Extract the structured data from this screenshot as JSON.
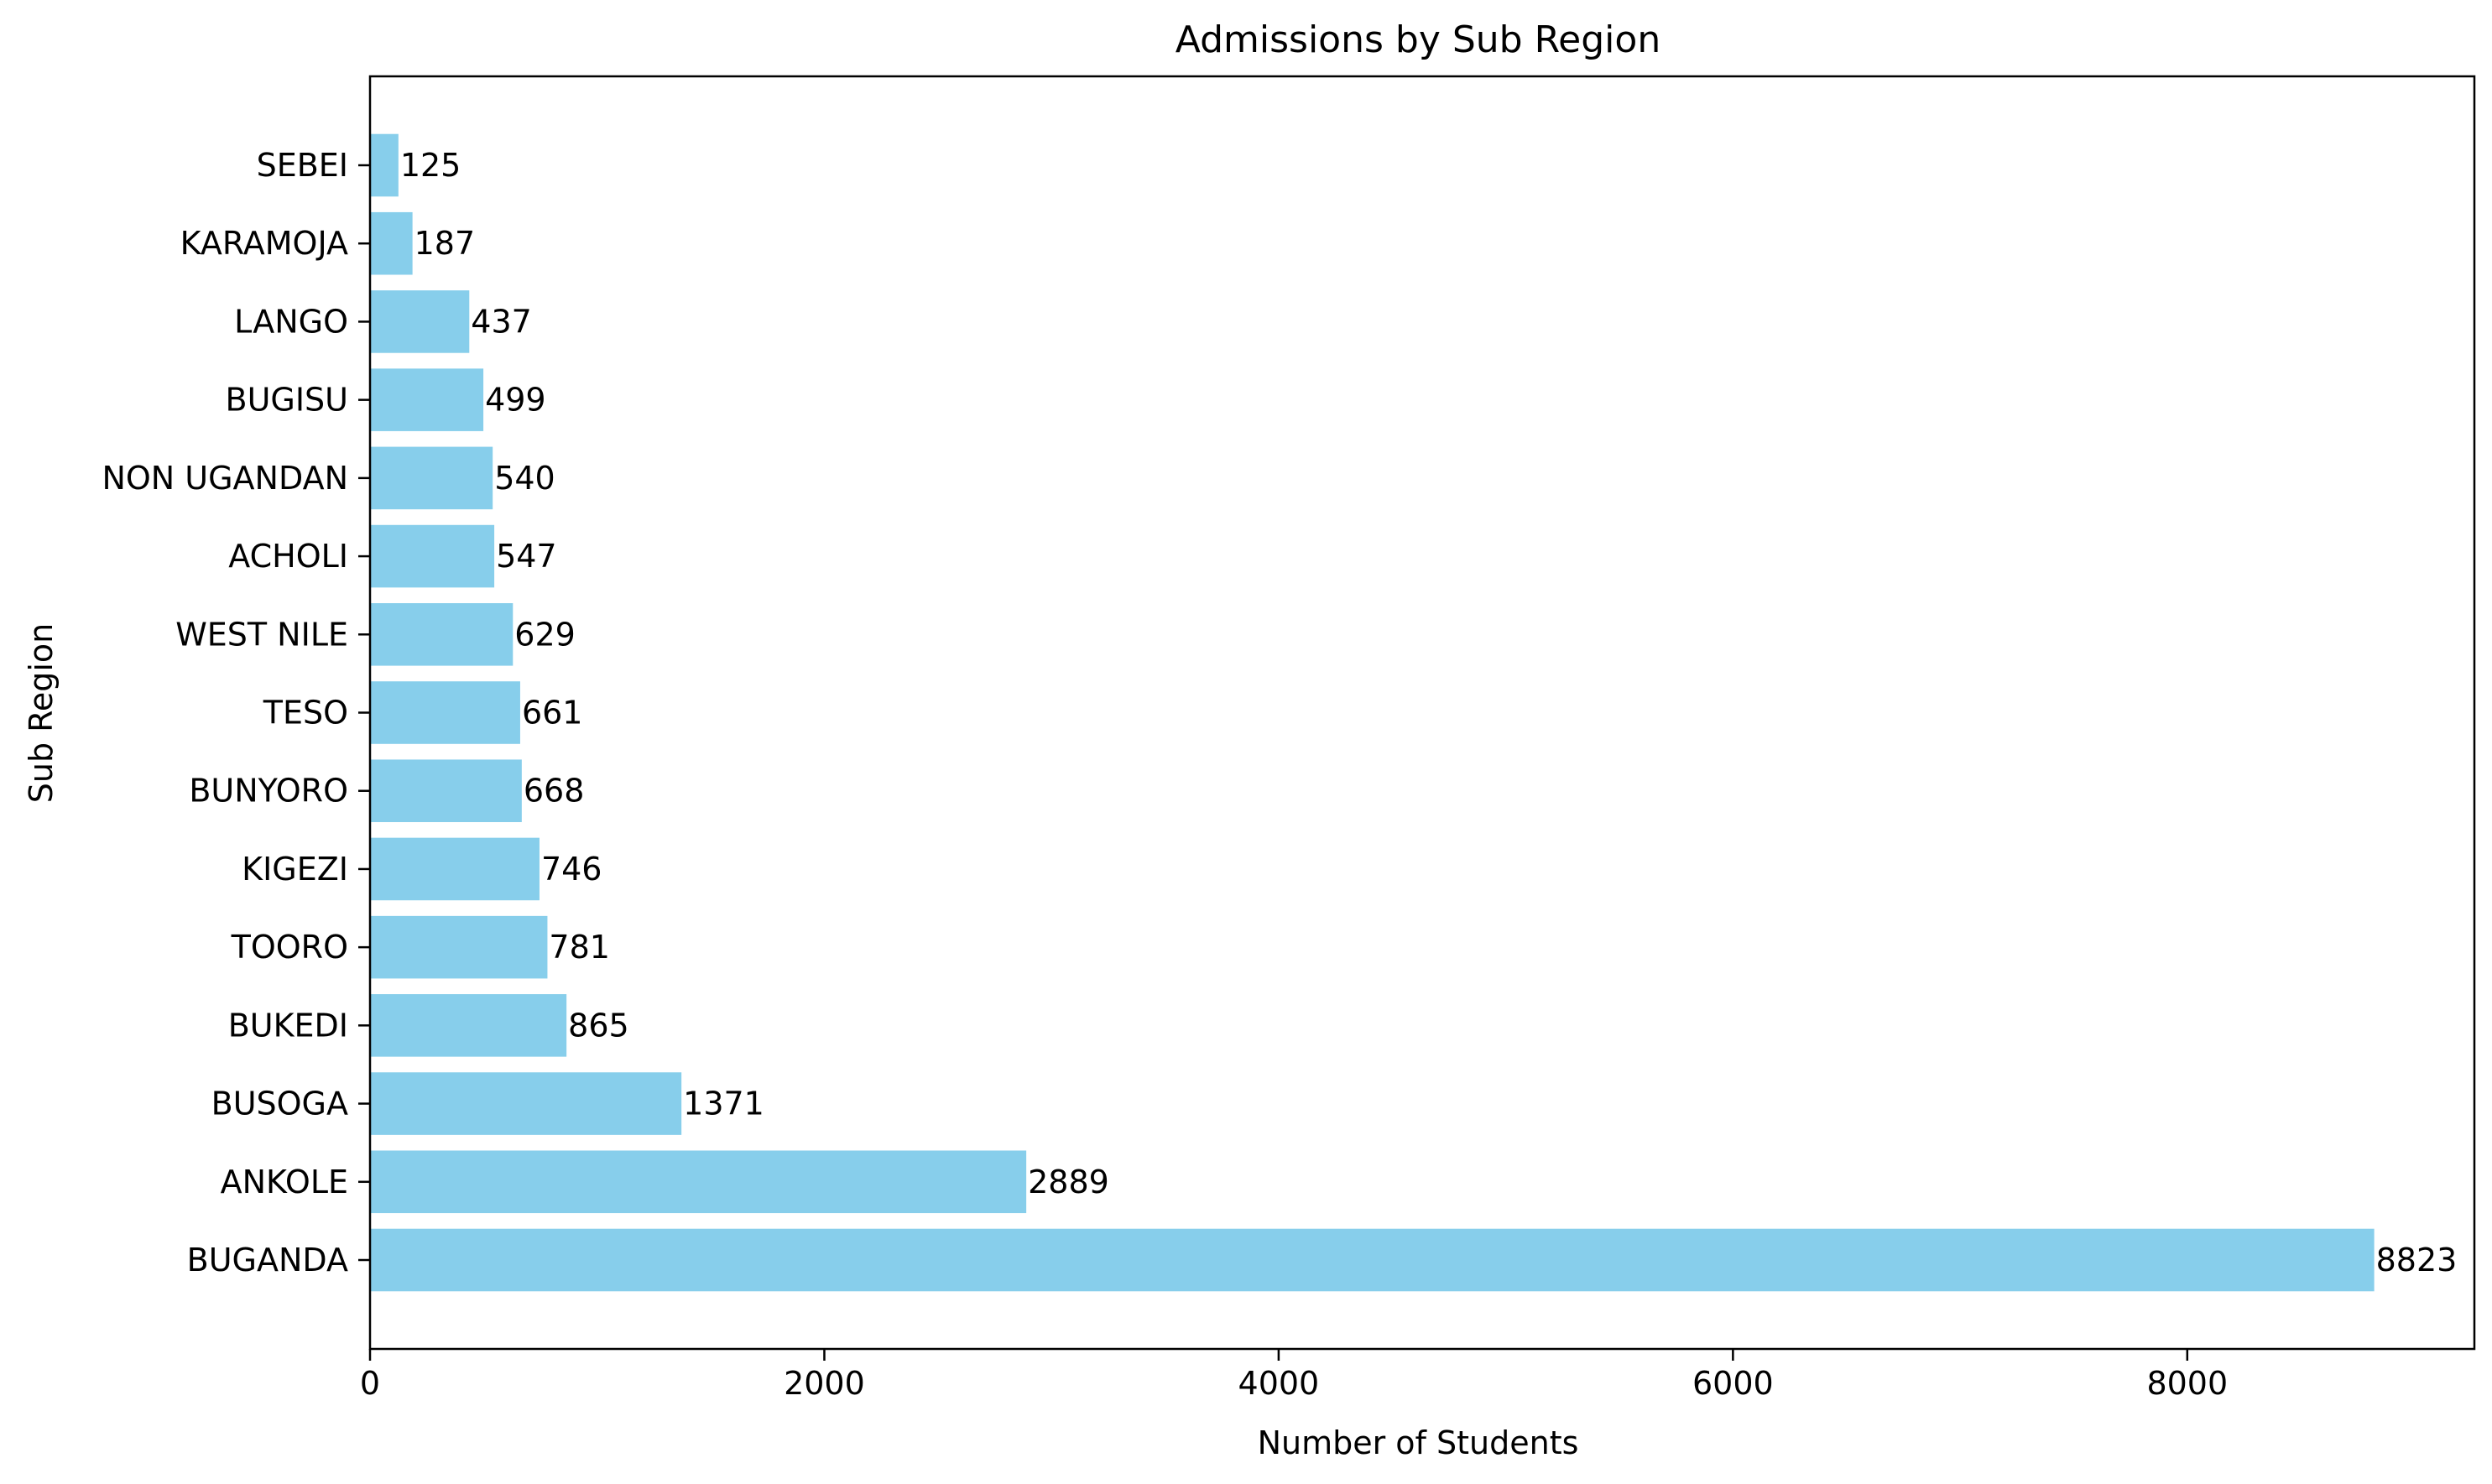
{
  "chart_data": {
    "type": "bar",
    "orientation": "horizontal",
    "title": "Admissions by Sub Region",
    "xlabel": "Number of Students",
    "ylabel": "Sub Region",
    "categories": [
      "BUGANDA",
      "ANKOLE",
      "BUSOGA",
      "BUKEDI",
      "TOORO",
      "KIGEZI",
      "BUNYORO",
      "TESO",
      "WEST NILE",
      "ACHOLI",
      "NON UGANDAN",
      "BUGISU",
      "LANGO",
      "KARAMOJA",
      "SEBEI"
    ],
    "values": [
      8823,
      2889,
      1371,
      865,
      781,
      746,
      668,
      661,
      629,
      547,
      540,
      499,
      437,
      187,
      125
    ],
    "xlim": [
      0,
      9264
    ],
    "xticks": [
      0,
      2000,
      4000,
      6000,
      8000
    ],
    "bar_color": "#87ceeb",
    "grid": false,
    "legend": false,
    "data_labels": true
  }
}
